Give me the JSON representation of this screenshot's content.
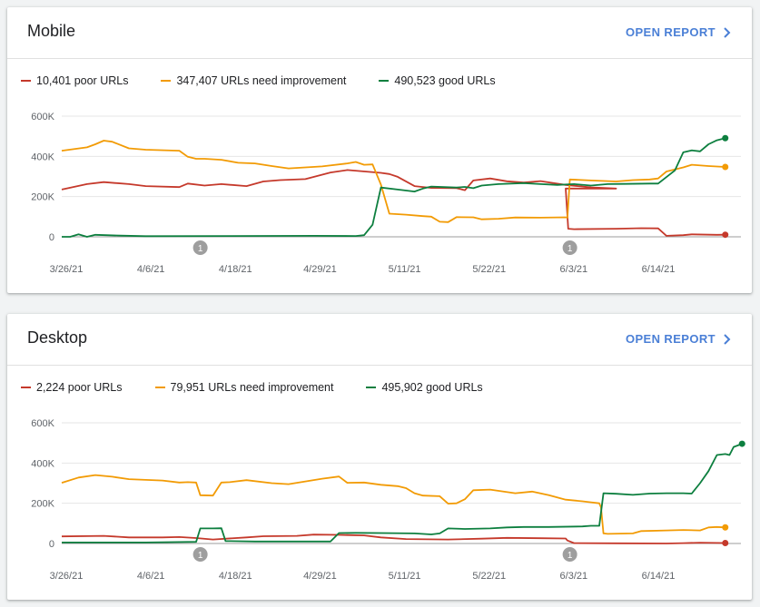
{
  "colors": {
    "poor": "#c5392b",
    "improve": "#f29b05",
    "good": "#0d7f3f",
    "link": "#4a7fd6"
  },
  "cards": [
    {
      "title": "Mobile",
      "open_report_label": "OPEN REPORT",
      "legend": {
        "poor": "10,401 poor URLs",
        "improve": "347,407 URLs need improvement",
        "good": "490,523 good URLs"
      }
    },
    {
      "title": "Desktop",
      "open_report_label": "OPEN REPORT",
      "legend": {
        "poor": "2,224 poor URLs",
        "improve": "79,951 URLs need improvement",
        "good": "495,902 good URLs"
      }
    }
  ],
  "chart_data": [
    {
      "type": "line",
      "x_tick_labels": [
        "3/26/21",
        "4/6/21",
        "4/18/21",
        "4/29/21",
        "5/11/21",
        "5/22/21",
        "6/3/21",
        "6/14/21"
      ],
      "y_tick_labels": [
        "0",
        "200K",
        "400K",
        "600K"
      ],
      "ylim": [
        0,
        600000
      ],
      "annotations": [
        {
          "label": "1",
          "x": 16.5
        },
        {
          "label": "1",
          "x": 60.5
        }
      ],
      "series": [
        {
          "name": "10,401 poor URLs",
          "color": "#c5392b",
          "points": [
            [
              0,
              235000
            ],
            [
              3,
              262000
            ],
            [
              5,
              272000
            ],
            [
              8,
              262000
            ],
            [
              10,
              252000
            ],
            [
              14,
              247000
            ],
            [
              15,
              265000
            ],
            [
              17,
              255000
            ],
            [
              19,
              262000
            ],
            [
              22,
              252000
            ],
            [
              24,
              275000
            ],
            [
              26,
              282000
            ],
            [
              29,
              287000
            ],
            [
              32,
              320000
            ],
            [
              34,
              332000
            ],
            [
              38,
              318000
            ],
            [
              39,
              312000
            ],
            [
              40,
              298000
            ],
            [
              42,
              252000
            ],
            [
              44,
              243000
            ],
            [
              47,
              242000
            ],
            [
              48,
              232000
            ],
            [
              49,
              280000
            ],
            [
              51,
              290000
            ],
            [
              53,
              276000
            ],
            [
              55,
              270000
            ],
            [
              57,
              277000
            ],
            [
              60,
              258000
            ],
            [
              63,
              246000
            ],
            [
              66,
              240000
            ],
            [
              60,
              240000
            ],
            [
              60.3,
              40000
            ],
            [
              61,
              38000
            ],
            [
              66,
              40000
            ],
            [
              69,
              43000
            ],
            [
              71,
              42000
            ],
            [
              72,
              5000
            ],
            [
              74,
              8000
            ],
            [
              75,
              12000
            ],
            [
              78,
              10000
            ],
            [
              79,
              10401
            ]
          ]
        },
        {
          "name": "347,407 URLs need improvement",
          "color": "#f29b05",
          "points": [
            [
              0,
              428000
            ],
            [
              3,
              445000
            ],
            [
              4,
              460000
            ],
            [
              5,
              478000
            ],
            [
              6,
              473000
            ],
            [
              8,
              440000
            ],
            [
              10,
              433000
            ],
            [
              14,
              428000
            ],
            [
              15,
              398000
            ],
            [
              16,
              388000
            ],
            [
              17,
              388000
            ],
            [
              19,
              383000
            ],
            [
              21,
              368000
            ],
            [
              23,
              365000
            ],
            [
              25,
              352000
            ],
            [
              27,
              340000
            ],
            [
              31,
              350000
            ],
            [
              34,
              365000
            ],
            [
              35,
              372000
            ],
            [
              36,
              358000
            ],
            [
              37,
              360000
            ],
            [
              38,
              260000
            ],
            [
              39,
              115000
            ],
            [
              41,
              110000
            ],
            [
              43,
              103000
            ],
            [
              44,
              100000
            ],
            [
              45,
              75000
            ],
            [
              46,
              73000
            ],
            [
              47,
              98000
            ],
            [
              49,
              97000
            ],
            [
              50,
              87000
            ],
            [
              52,
              90000
            ],
            [
              54,
              96000
            ],
            [
              57,
              95000
            ],
            [
              60,
              97000
            ],
            [
              60.2,
              95000
            ],
            [
              60.5,
              285000
            ],
            [
              63,
              280000
            ],
            [
              66,
              275000
            ],
            [
              68,
              282000
            ],
            [
              70,
              285000
            ],
            [
              71,
              290000
            ],
            [
              72,
              325000
            ],
            [
              74,
              345000
            ],
            [
              75,
              358000
            ],
            [
              77,
              352000
            ],
            [
              79,
              347407
            ]
          ]
        },
        {
          "name": "490,523 good URLs",
          "color": "#0d7f3f",
          "points": [
            [
              0,
              0
            ],
            [
              1,
              0
            ],
            [
              2,
              12000
            ],
            [
              3,
              0
            ],
            [
              4,
              10000
            ],
            [
              7,
              6000
            ],
            [
              10,
              3000
            ],
            [
              20,
              4000
            ],
            [
              30,
              5000
            ],
            [
              35,
              4000
            ],
            [
              36,
              8000
            ],
            [
              37,
              60000
            ],
            [
              38,
              245000
            ],
            [
              40,
              235000
            ],
            [
              42,
              225000
            ],
            [
              43,
              240000
            ],
            [
              44,
              250000
            ],
            [
              47,
              245000
            ],
            [
              48,
              248000
            ],
            [
              49,
              242000
            ],
            [
              50,
              255000
            ],
            [
              52,
              262000
            ],
            [
              55,
              267000
            ],
            [
              57,
              262000
            ],
            [
              59,
              258000
            ],
            [
              61,
              262000
            ],
            [
              63,
              255000
            ],
            [
              65,
              262000
            ],
            [
              67,
              263000
            ],
            [
              70,
              265000
            ],
            [
              71,
              265000
            ],
            [
              73,
              330000
            ],
            [
              74,
              420000
            ],
            [
              75,
              430000
            ],
            [
              76,
              425000
            ],
            [
              77,
              460000
            ],
            [
              78,
              480000
            ],
            [
              79,
              490523
            ]
          ]
        }
      ]
    },
    {
      "type": "line",
      "x_tick_labels": [
        "3/26/21",
        "4/6/21",
        "4/18/21",
        "4/29/21",
        "5/11/21",
        "5/22/21",
        "6/3/21",
        "6/14/21"
      ],
      "y_tick_labels": [
        "0",
        "200K",
        "400K",
        "600K"
      ],
      "ylim": [
        0,
        600000
      ],
      "annotations": [
        {
          "label": "1",
          "x": 16.5
        },
        {
          "label": "1",
          "x": 60.5
        }
      ],
      "series": [
        {
          "name": "2,224 poor URLs",
          "color": "#c5392b",
          "points": [
            [
              0,
              35000
            ],
            [
              5,
              38000
            ],
            [
              8,
              30000
            ],
            [
              12,
              30000
            ],
            [
              14,
              32000
            ],
            [
              16,
              27000
            ],
            [
              18,
              20000
            ],
            [
              22,
              30000
            ],
            [
              24,
              36000
            ],
            [
              28,
              38000
            ],
            [
              30,
              44000
            ],
            [
              33,
              43000
            ],
            [
              36,
              40000
            ],
            [
              38,
              30000
            ],
            [
              41,
              22000
            ],
            [
              46,
              20000
            ],
            [
              50,
              24000
            ],
            [
              53,
              28000
            ],
            [
              57,
              26000
            ],
            [
              60,
              25000
            ],
            [
              60.2,
              15000
            ],
            [
              61,
              2000
            ],
            [
              66,
              1000
            ],
            [
              72,
              0
            ],
            [
              74,
              2000
            ],
            [
              76,
              4000
            ],
            [
              79,
              2224
            ]
          ]
        },
        {
          "name": "79,951 URLs need improvement",
          "color": "#f29b05",
          "points": [
            [
              0,
              302000
            ],
            [
              2,
              328000
            ],
            [
              4,
              340000
            ],
            [
              6,
              332000
            ],
            [
              8,
              320000
            ],
            [
              12,
              313000
            ],
            [
              14,
              303000
            ],
            [
              15,
              305000
            ],
            [
              16,
              303000
            ],
            [
              16.5,
              240000
            ],
            [
              18,
              238000
            ],
            [
              19,
              303000
            ],
            [
              20,
              305000
            ],
            [
              22,
              315000
            ],
            [
              25,
              300000
            ],
            [
              27,
              295000
            ],
            [
              31,
              322000
            ],
            [
              33,
              333000
            ],
            [
              34,
              302000
            ],
            [
              36,
              303000
            ],
            [
              38,
              292000
            ],
            [
              40,
              285000
            ],
            [
              41,
              275000
            ],
            [
              42,
              250000
            ],
            [
              43,
              238000
            ],
            [
              45,
              235000
            ],
            [
              46,
              198000
            ],
            [
              47,
              200000
            ],
            [
              48,
              220000
            ],
            [
              49,
              265000
            ],
            [
              51,
              268000
            ],
            [
              54,
              250000
            ],
            [
              56,
              258000
            ],
            [
              58,
              240000
            ],
            [
              60,
              218000
            ],
            [
              62,
              210000
            ],
            [
              63,
              205000
            ],
            [
              64,
              200000
            ],
            [
              64.2,
              180000
            ],
            [
              64.5,
              50000
            ],
            [
              65,
              48000
            ],
            [
              68,
              50000
            ],
            [
              69,
              62000
            ],
            [
              72,
              65000
            ],
            [
              74,
              67000
            ],
            [
              76,
              65000
            ],
            [
              77,
              80000
            ],
            [
              78,
              82000
            ],
            [
              79,
              79951
            ]
          ]
        },
        {
          "name": "495,902 good URLs",
          "color": "#0d7f3f",
          "points": [
            [
              0,
              5000
            ],
            [
              10,
              5000
            ],
            [
              16,
              8000
            ],
            [
              16.5,
              75000
            ],
            [
              18,
              75000
            ],
            [
              19,
              76000
            ],
            [
              19.5,
              12000
            ],
            [
              23,
              10000
            ],
            [
              28,
              10000
            ],
            [
              32,
              10000
            ],
            [
              33,
              52000
            ],
            [
              35,
              53000
            ],
            [
              38,
              52000
            ],
            [
              42,
              50000
            ],
            [
              44,
              45000
            ],
            [
              45,
              50000
            ],
            [
              46,
              75000
            ],
            [
              48,
              72000
            ],
            [
              51,
              75000
            ],
            [
              53,
              80000
            ],
            [
              55,
              82000
            ],
            [
              58,
              82000
            ],
            [
              62,
              85000
            ],
            [
              63,
              88000
            ],
            [
              64,
              88000
            ],
            [
              64.5,
              250000
            ],
            [
              66,
              247000
            ],
            [
              68,
              242000
            ],
            [
              70,
              248000
            ],
            [
              72,
              250000
            ],
            [
              74,
              250000
            ],
            [
              75,
              248000
            ],
            [
              76,
              300000
            ],
            [
              77,
              360000
            ],
            [
              78,
              440000
            ],
            [
              79,
              445000
            ],
            [
              79.5,
              440000
            ],
            [
              80,
              480000
            ],
            [
              81,
              495902
            ]
          ]
        }
      ]
    }
  ]
}
